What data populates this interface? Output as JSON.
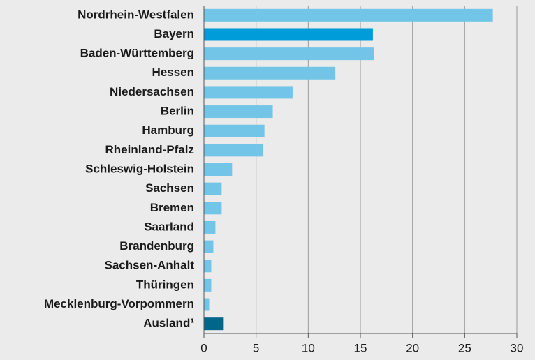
{
  "chart_data": {
    "type": "barh",
    "categories": [
      "Nordrhein-Westfalen",
      "Bayern",
      "Baden-Württemberg",
      "Hessen",
      "Niedersachsen",
      "Berlin",
      "Hamburg",
      "Rheinland-Pfalz",
      "Schleswig-Holstein",
      "Sachsen",
      "Bremen",
      "Saarland",
      "Brandenburg",
      "Sachsen-Anhalt",
      "Thüringen",
      "Mecklenburg-Vorpommern",
      "Ausland¹"
    ],
    "values": [
      27.7,
      16.2,
      16.3,
      12.6,
      8.5,
      6.6,
      5.8,
      5.7,
      2.7,
      1.7,
      1.7,
      1.1,
      0.9,
      0.7,
      0.7,
      0.5,
      1.9
    ],
    "colors": [
      "#73c5e8",
      "#009bd9",
      "#73c5e8",
      "#73c5e8",
      "#73c5e8",
      "#73c5e8",
      "#73c5e8",
      "#73c5e8",
      "#73c5e8",
      "#73c5e8",
      "#73c5e8",
      "#73c5e8",
      "#73c5e8",
      "#73c5e8",
      "#73c5e8",
      "#73c5e8",
      "#00678b"
    ],
    "xlim": [
      0,
      30
    ],
    "xticks": [
      0,
      5,
      10,
      15,
      20,
      25,
      30
    ],
    "grid": true
  }
}
